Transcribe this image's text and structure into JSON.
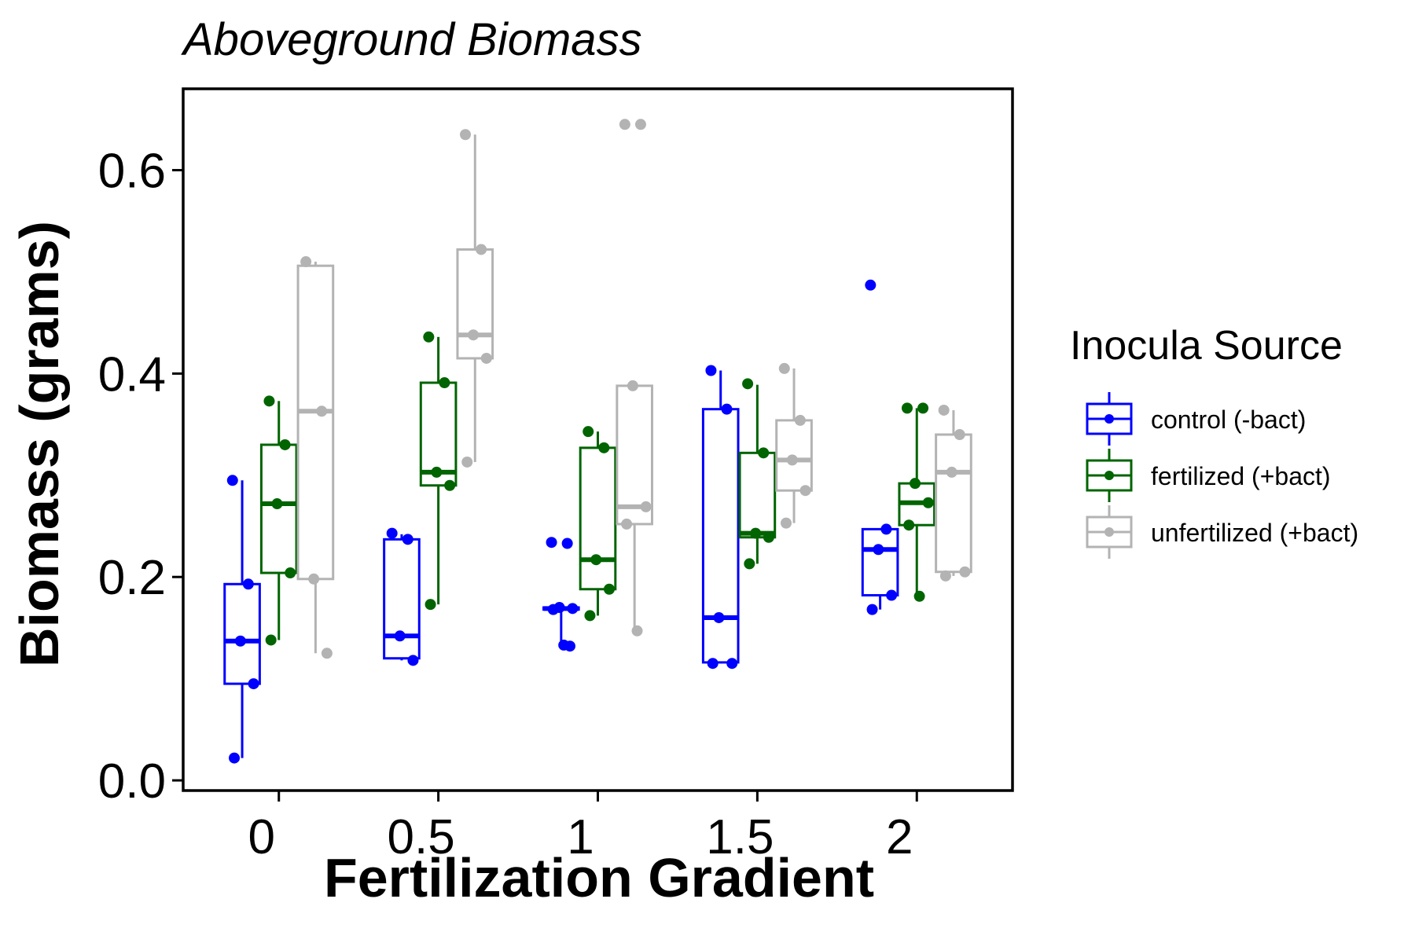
{
  "chart_data": {
    "type": "boxplot",
    "title": "Aboveground Biomass",
    "xlabel": "Fertilization Gradient",
    "ylabel": "Biomass (grams)",
    "categories": [
      "0",
      "0.5",
      "1",
      "1.5",
      "2"
    ],
    "ylim": [
      -0.01,
      0.68
    ],
    "yticks": [
      "0.0",
      "0.2",
      "0.4",
      "0.6"
    ],
    "grid": false,
    "legend": {
      "title": "Inocula Source",
      "position": "right"
    },
    "series": [
      {
        "name": "control (-bact)",
        "color": "#0000ff",
        "boxes": [
          {
            "min": 0.022,
            "q1": 0.095,
            "median": 0.137,
            "q3": 0.193,
            "max": 0.295
          },
          {
            "min": 0.118,
            "q1": 0.12,
            "median": 0.142,
            "q3": 0.237,
            "max": 0.242
          },
          {
            "min": 0.133,
            "q1": 0.168,
            "median": 0.169,
            "q3": 0.17,
            "max": 0.171
          },
          {
            "min": 0.115,
            "q1": 0.116,
            "median": 0.16,
            "q3": 0.365,
            "max": 0.403
          },
          {
            "min": 0.168,
            "q1": 0.182,
            "median": 0.227,
            "q3": 0.247,
            "max": 0.248
          }
        ],
        "points": [
          [
            0.295,
            0.193,
            0.137,
            0.095,
            0.022
          ],
          [
            0.243,
            0.237,
            0.142,
            0.118
          ],
          [
            0.234,
            0.233,
            0.17,
            0.169,
            0.168,
            0.133,
            0.132
          ],
          [
            0.403,
            0.365,
            0.16,
            0.115,
            0.115
          ],
          [
            0.487,
            0.247,
            0.227,
            0.182,
            0.168
          ]
        ]
      },
      {
        "name": "fertilized (+bact)",
        "color": "#006400",
        "boxes": [
          {
            "min": 0.138,
            "q1": 0.204,
            "median": 0.272,
            "q3": 0.33,
            "max": 0.373
          },
          {
            "min": 0.173,
            "q1": 0.29,
            "median": 0.303,
            "q3": 0.391,
            "max": 0.436
          },
          {
            "min": 0.162,
            "q1": 0.188,
            "median": 0.217,
            "q3": 0.327,
            "max": 0.343
          },
          {
            "min": 0.213,
            "q1": 0.239,
            "median": 0.243,
            "q3": 0.322,
            "max": 0.389
          },
          {
            "min": 0.181,
            "q1": 0.251,
            "median": 0.273,
            "q3": 0.292,
            "max": 0.366
          }
        ],
        "points": [
          [
            0.373,
            0.33,
            0.272,
            0.204,
            0.138
          ],
          [
            0.436,
            0.391,
            0.303,
            0.29,
            0.173
          ],
          [
            0.343,
            0.327,
            0.217,
            0.188,
            0.162
          ],
          [
            0.39,
            0.322,
            0.243,
            0.239,
            0.213
          ],
          [
            0.366,
            0.366,
            0.292,
            0.273,
            0.251,
            0.181
          ]
        ]
      },
      {
        "name": "unfertilized (+bact)",
        "color": "#b3b3b3",
        "boxes": [
          {
            "min": 0.125,
            "q1": 0.198,
            "median": 0.363,
            "q3": 0.506,
            "max": 0.51
          },
          {
            "min": 0.313,
            "q1": 0.415,
            "median": 0.438,
            "q3": 0.522,
            "max": 0.635
          },
          {
            "min": 0.147,
            "q1": 0.252,
            "median": 0.269,
            "q3": 0.388,
            "max": 0.388
          },
          {
            "min": 0.253,
            "q1": 0.285,
            "median": 0.315,
            "q3": 0.354,
            "max": 0.405
          },
          {
            "min": 0.201,
            "q1": 0.205,
            "median": 0.303,
            "q3": 0.34,
            "max": 0.364
          }
        ],
        "points": [
          [
            0.51,
            0.363,
            0.198,
            0.125
          ],
          [
            0.635,
            0.522,
            0.438,
            0.415,
            0.313
          ],
          [
            0.645,
            0.645,
            0.388,
            0.269,
            0.252,
            0.147
          ],
          [
            0.405,
            0.354,
            0.315,
            0.285,
            0.253
          ],
          [
            0.364,
            0.34,
            0.303,
            0.205,
            0.201
          ]
        ]
      }
    ]
  }
}
